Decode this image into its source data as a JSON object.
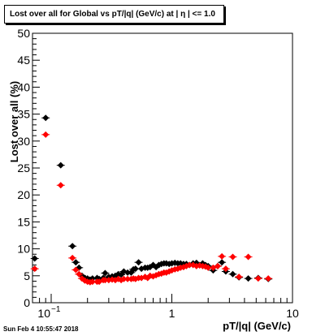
{
  "title": "Lost over all for Global vs pT/|q| (GeV/c) at |  η  | <= 1.0",
  "timestamp": "Sun Feb  4 10:55:47 2018",
  "chart_data": {
    "type": "scatter",
    "xlabel": "pT/|q| (GeV/c)",
    "ylabel": "Lost over all (%)",
    "xscale": "log",
    "xlim": [
      0.07,
      10
    ],
    "ylim": [
      0,
      50
    ],
    "y_ticks": [
      0,
      5,
      10,
      15,
      20,
      25,
      30,
      35,
      40,
      45,
      50
    ],
    "x_tick_labels": [
      {
        "x": 0.1,
        "base": "10",
        "exp": "−1"
      },
      {
        "x": 1,
        "base": "1",
        "exp": ""
      },
      {
        "x": 10,
        "base": "10",
        "exp": ""
      }
    ],
    "grid": false,
    "legend": "none",
    "series": [
      {
        "color": "#000000",
        "points": [
          [
            0.073,
            8.2
          ],
          [
            0.09,
            34.3
          ],
          [
            0.12,
            25.5
          ],
          [
            0.15,
            10.5
          ],
          [
            0.16,
            7.5
          ],
          [
            0.17,
            6.5
          ],
          [
            0.18,
            5.0
          ],
          [
            0.19,
            4.6
          ],
          [
            0.2,
            4.5
          ],
          [
            0.21,
            4.3
          ],
          [
            0.22,
            4.5
          ],
          [
            0.24,
            4.6
          ],
          [
            0.25,
            4.4
          ],
          [
            0.27,
            4.6
          ],
          [
            0.28,
            5.5
          ],
          [
            0.3,
            4.8
          ],
          [
            0.32,
            4.9
          ],
          [
            0.34,
            5.0
          ],
          [
            0.36,
            5.3
          ],
          [
            0.38,
            5.2
          ],
          [
            0.4,
            5.8
          ],
          [
            0.43,
            5.6
          ],
          [
            0.46,
            5.6
          ],
          [
            0.48,
            6.2
          ],
          [
            0.5,
            6.3
          ],
          [
            0.53,
            7.5
          ],
          [
            0.56,
            6.3
          ],
          [
            0.6,
            6.5
          ],
          [
            0.63,
            6.5
          ],
          [
            0.66,
            6.6
          ],
          [
            0.7,
            7.0
          ],
          [
            0.74,
            6.6
          ],
          [
            0.78,
            7.0
          ],
          [
            0.82,
            7.2
          ],
          [
            0.86,
            7.3
          ],
          [
            0.9,
            7.3
          ],
          [
            0.95,
            7.2
          ],
          [
            1.0,
            7.3
          ],
          [
            1.06,
            7.4
          ],
          [
            1.12,
            7.3
          ],
          [
            1.18,
            7.3
          ],
          [
            1.25,
            7.2
          ],
          [
            1.32,
            7.2
          ],
          [
            1.4,
            7.0
          ],
          [
            1.5,
            7.3
          ],
          [
            1.6,
            7.4
          ],
          [
            1.7,
            7.0
          ],
          [
            1.8,
            7.3
          ],
          [
            1.9,
            7.0
          ],
          [
            2.0,
            6.8
          ],
          [
            2.2,
            6.0
          ],
          [
            2.4,
            6.8
          ],
          [
            2.6,
            7.5
          ],
          [
            2.8,
            5.8
          ],
          [
            3.2,
            5.3
          ],
          [
            3.6,
            4.7
          ],
          [
            4.3,
            4.5
          ],
          [
            5.2,
            4.6
          ],
          [
            6.3,
            4.4
          ]
        ]
      },
      {
        "color": "#ff0000",
        "points": [
          [
            0.073,
            6.3
          ],
          [
            0.09,
            31.2
          ],
          [
            0.12,
            21.8
          ],
          [
            0.15,
            8.3
          ],
          [
            0.16,
            6.1
          ],
          [
            0.17,
            5.3
          ],
          [
            0.18,
            4.5
          ],
          [
            0.19,
            4.1
          ],
          [
            0.2,
            3.9
          ],
          [
            0.21,
            3.8
          ],
          [
            0.22,
            3.9
          ],
          [
            0.24,
            3.9
          ],
          [
            0.25,
            3.9
          ],
          [
            0.27,
            4.2
          ],
          [
            0.28,
            4.2
          ],
          [
            0.3,
            4.2
          ],
          [
            0.32,
            4.3
          ],
          [
            0.34,
            4.2
          ],
          [
            0.36,
            4.4
          ],
          [
            0.38,
            4.2
          ],
          [
            0.4,
            4.4
          ],
          [
            0.43,
            4.4
          ],
          [
            0.46,
            4.4
          ],
          [
            0.48,
            4.5
          ],
          [
            0.5,
            4.4
          ],
          [
            0.53,
            4.6
          ],
          [
            0.56,
            4.6
          ],
          [
            0.6,
            4.8
          ],
          [
            0.63,
            4.6
          ],
          [
            0.66,
            5.0
          ],
          [
            0.7,
            4.9
          ],
          [
            0.74,
            5.1
          ],
          [
            0.78,
            5.3
          ],
          [
            0.82,
            5.4
          ],
          [
            0.86,
            5.6
          ],
          [
            0.9,
            5.6
          ],
          [
            0.95,
            5.8
          ],
          [
            1.0,
            6.0
          ],
          [
            1.06,
            6.2
          ],
          [
            1.12,
            6.3
          ],
          [
            1.18,
            6.5
          ],
          [
            1.25,
            6.6
          ],
          [
            1.32,
            6.8
          ],
          [
            1.4,
            7.0
          ],
          [
            1.5,
            7.0
          ],
          [
            1.6,
            6.8
          ],
          [
            1.7,
            6.9
          ],
          [
            1.8,
            6.8
          ],
          [
            1.9,
            6.7
          ],
          [
            2.0,
            6.5
          ],
          [
            2.2,
            6.5
          ],
          [
            2.4,
            6.8
          ],
          [
            2.6,
            8.6
          ],
          [
            2.8,
            6.3
          ],
          [
            3.2,
            8.5
          ],
          [
            3.6,
            4.8
          ],
          [
            4.3,
            8.5
          ],
          [
            5.2,
            4.5
          ],
          [
            6.3,
            4.5
          ]
        ]
      }
    ]
  }
}
